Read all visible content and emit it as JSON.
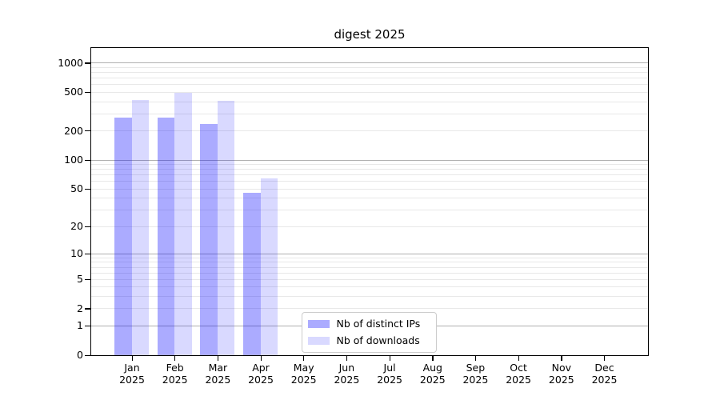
{
  "chart_data": {
    "type": "bar",
    "title": "digest 2025",
    "x_axis": {
      "months": [
        "Jan",
        "Feb",
        "Mar",
        "Apr",
        "May",
        "Jun",
        "Jul",
        "Aug",
        "Sep",
        "Oct",
        "Nov",
        "Dec"
      ],
      "year": "2025"
    },
    "y_axis": {
      "scale": "log1p",
      "tick_values": [
        1000,
        500,
        200,
        100,
        50,
        20,
        10,
        5,
        2,
        1,
        0
      ],
      "ylim": [
        0,
        1430
      ]
    },
    "grid": {
      "major_values": [
        1,
        10,
        100,
        1000
      ],
      "minor_values": [
        2,
        3,
        4,
        5,
        6,
        7,
        8,
        9,
        20,
        30,
        40,
        50,
        60,
        70,
        80,
        90,
        200,
        300,
        400,
        500,
        600,
        700,
        800,
        900
      ],
      "major_color": "#b0b0b0",
      "minor_color": "#e8e8e8"
    },
    "series": [
      {
        "name": "Nb of distinct IPs",
        "color": "rgba(0,0,255,0.33)",
        "values": [
          280,
          275,
          240,
          46,
          0,
          0,
          0,
          0,
          0,
          0,
          0,
          0
        ]
      },
      {
        "name": "Nb of downloads",
        "color": "rgba(0,0,255,0.15)",
        "values": [
          420,
          500,
          410,
          65,
          0,
          0,
          0,
          0,
          0,
          0,
          0,
          0
        ]
      }
    ],
    "legend_position": "inside-bottom-center"
  }
}
